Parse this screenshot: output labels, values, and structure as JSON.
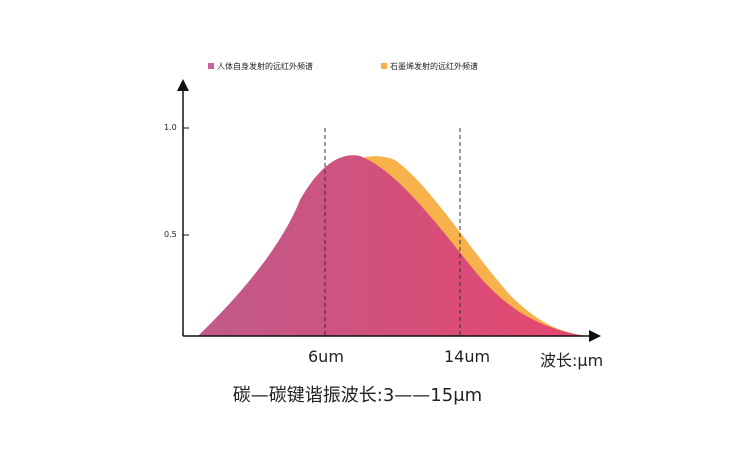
{
  "chart_data": {
    "type": "area",
    "series": [
      {
        "name": "人体自身发射的远红外频谱",
        "color": "#c7619f"
      },
      {
        "name": "石墨烯发射的远红外频谱",
        "color": "#f7b24b"
      }
    ],
    "area_fill_start": "#c05a8a",
    "area_fill_end": "#e6466e",
    "ytick_labels": [
      "1.0",
      "0.5"
    ],
    "yticks": [
      1.0,
      0.5
    ],
    "ylim": [
      0,
      1.0
    ],
    "xtick_labels": [
      "6um",
      "14um"
    ],
    "xlabel": "波长:μm",
    "note": "碳—碳键谐振波长:3——15μm"
  }
}
